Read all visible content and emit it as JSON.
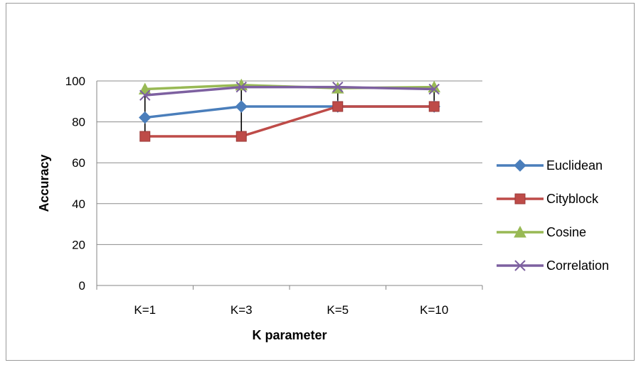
{
  "chart_data": {
    "type": "line",
    "title": "",
    "xlabel": "K parameter",
    "ylabel": "Accuracy",
    "categories": [
      "K=1",
      "K=3",
      "K=5",
      "K=10"
    ],
    "ylim": [
      0,
      100
    ],
    "yticks": [
      "0",
      "20",
      "40",
      "60",
      "80",
      "100"
    ],
    "grid": "horizontal",
    "legend": "right",
    "series": [
      {
        "name": "Euclidean",
        "values": [
          82.1,
          87.5,
          87.5,
          87.5
        ],
        "color": "#4a7ebb",
        "marker": "diamond"
      },
      {
        "name": "Cityblock",
        "values": [
          72.9,
          72.9,
          87.5,
          87.5
        ],
        "color": "#be4b48",
        "marker": "square"
      },
      {
        "name": "Cosine",
        "values": [
          96.0,
          98.0,
          96.5,
          97.0
        ],
        "color": "#98b954",
        "marker": "triangle"
      },
      {
        "name": "Correlation",
        "values": [
          93.0,
          97.0,
          97.0,
          96.0
        ],
        "color": "#7d60a0",
        "marker": "x"
      }
    ],
    "high_low_lines": [
      {
        "high": 96.0,
        "low": 72.9
      },
      {
        "high": 98.0,
        "low": 72.9
      },
      {
        "high": 97.0,
        "low": 87.5
      },
      {
        "high": 97.0,
        "low": 87.5
      }
    ]
  }
}
